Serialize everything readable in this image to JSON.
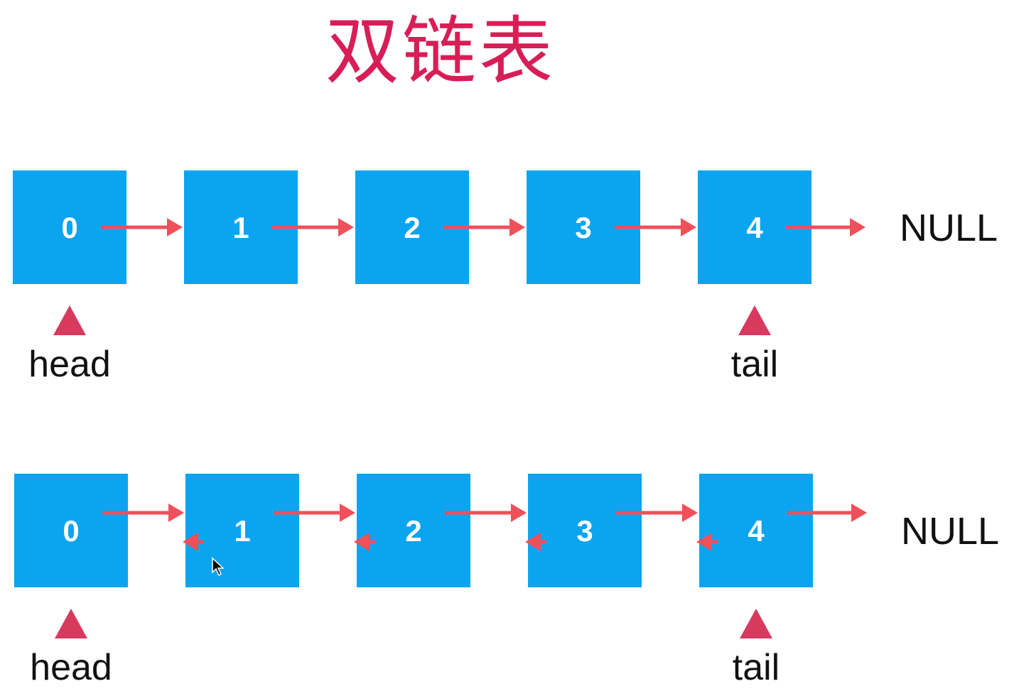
{
  "title": "双链表",
  "colors": {
    "title": "#d81e56",
    "node": "#0ba4f1",
    "node_text": "#ffffff",
    "arrow": "#f0505a",
    "pointer": "#d83a5e",
    "label": "#111111"
  },
  "diagrams": [
    {
      "kind": "singly-linked",
      "nodes": [
        "0",
        "1",
        "2",
        "3",
        "4"
      ],
      "end_label": "NULL",
      "head_label": "head",
      "tail_label": "tail",
      "backward_links": false
    },
    {
      "kind": "doubly-linked",
      "nodes": [
        "0",
        "1",
        "2",
        "3",
        "4"
      ],
      "end_label": "NULL",
      "head_label": "head",
      "tail_label": "tail",
      "backward_links": true
    }
  ],
  "icons": {
    "pointer": "triangle-up-icon",
    "cursor": "mouse-cursor-icon"
  }
}
